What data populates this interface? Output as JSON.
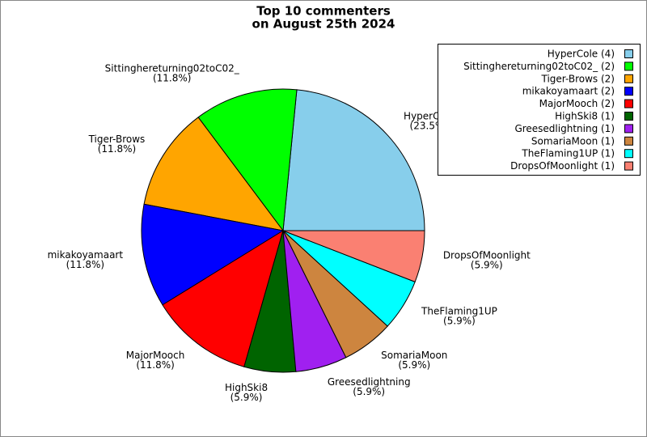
{
  "chart_data": {
    "type": "pie",
    "title": [
      "Top 10 commenters",
      "on August 25th 2024"
    ],
    "categories": [
      "HyperCole",
      "Sittinghereturning02toC02_",
      "Tiger-Brows",
      "mikakoyamaart",
      "MajorMooch",
      "HighSki8",
      "Greesedlightning",
      "SomariaMoon",
      "TheFlaming1UP",
      "DropsOfMoonlight"
    ],
    "values": [
      23.5,
      11.8,
      11.8,
      11.8,
      11.8,
      5.9,
      5.9,
      5.9,
      5.9,
      5.9
    ],
    "value_labels": [
      "(23.5%)",
      "(11.8%)",
      "(11.8%)",
      "(11.8%)",
      "(11.8%)",
      "(5.9%)",
      "(5.9%)",
      "(5.9%)",
      "(5.9%)",
      "(5.9%)"
    ],
    "legend_labels": [
      "HyperCole (4)",
      "Sittinghereturning02toC02_ (2)",
      "Tiger-Brows (2)",
      "mikakoyamaart (2)",
      "MajorMooch (2)",
      "HighSki8 (1)",
      "Greesedlightning (1)",
      "SomariaMoon (1)",
      "TheFlaming1UP (1)",
      "DropsOfMoonlight (1)"
    ],
    "colors": [
      "#87ceeb",
      "#00ff00",
      "#ffa500",
      "#0000ff",
      "#ff0000",
      "#006400",
      "#a020f0",
      "#cd853f",
      "#00ffff",
      "#fa8072"
    ],
    "legend": "upper right"
  }
}
